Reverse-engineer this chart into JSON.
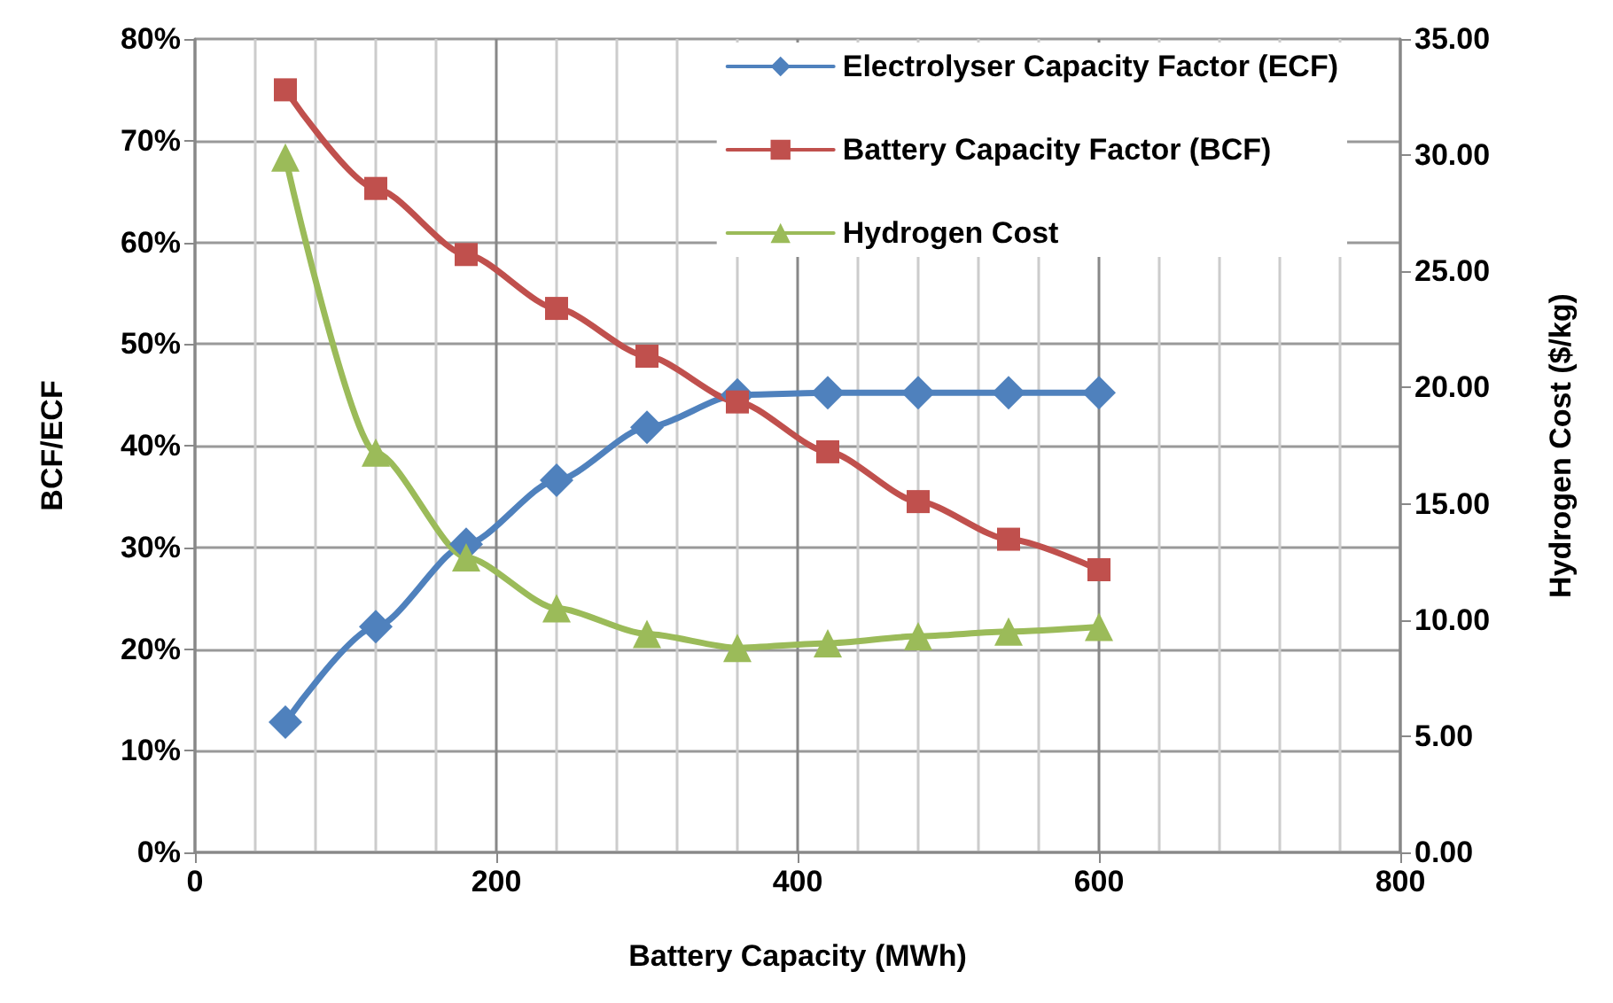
{
  "chart_data": {
    "type": "line",
    "xlabel": "Battery Capacity (MWh)",
    "ylabel": "BCF/ECF",
    "y2label": "Hydrogen Cost ($/kg)",
    "x": [
      60,
      120,
      180,
      240,
      300,
      360,
      420,
      480,
      540,
      600
    ],
    "series": [
      {
        "name": "Electrolyser Capacity Factor (ECF)",
        "color": "#4f81bd",
        "marker": "diamond",
        "values": [
          12.8,
          22.2,
          30.3,
          36.6,
          41.8,
          45.0,
          45.2,
          45.2,
          45.2,
          45.2
        ]
      },
      {
        "name": "Battery Capacity Factor (BCF)",
        "color": "#c0504d",
        "marker": "square",
        "values": [
          75.0,
          65.3,
          58.8,
          53.5,
          48.8,
          44.3,
          39.4,
          34.5,
          30.8,
          27.8
        ]
      },
      {
        "name": "Hydrogen Cost",
        "color": "#9bbb59",
        "marker": "triangle",
        "axis": "y2",
        "values": [
          29.9,
          17.2,
          12.7,
          10.5,
          9.4,
          8.8,
          9.0,
          9.3,
          9.5,
          9.7
        ]
      }
    ],
    "xlim": [
      0,
      800
    ],
    "xticks": [
      0,
      200,
      400,
      600,
      800
    ],
    "ylim": [
      0,
      80
    ],
    "yticks": [
      {
        "value": 0,
        "label": "0%"
      },
      {
        "value": 10,
        "label": "10%"
      },
      {
        "value": 20,
        "label": "20%"
      },
      {
        "value": 30,
        "label": "30%"
      },
      {
        "value": 40,
        "label": "40%"
      },
      {
        "value": 50,
        "label": "50%"
      },
      {
        "value": 60,
        "label": "60%"
      },
      {
        "value": 70,
        "label": "70%"
      },
      {
        "value": 80,
        "label": "80%"
      }
    ],
    "y2lim": [
      0,
      35
    ],
    "y2ticks": [
      {
        "value": 0,
        "label": "0.00"
      },
      {
        "value": 5,
        "label": "5.00"
      },
      {
        "value": 10,
        "label": "10.00"
      },
      {
        "value": 15,
        "label": "15.00"
      },
      {
        "value": 20,
        "label": "20.00"
      },
      {
        "value": 25,
        "label": "25.00"
      },
      {
        "value": 30,
        "label": "30.00"
      },
      {
        "value": 35,
        "label": "35.00"
      }
    ],
    "grid": true,
    "legend": "top right"
  }
}
